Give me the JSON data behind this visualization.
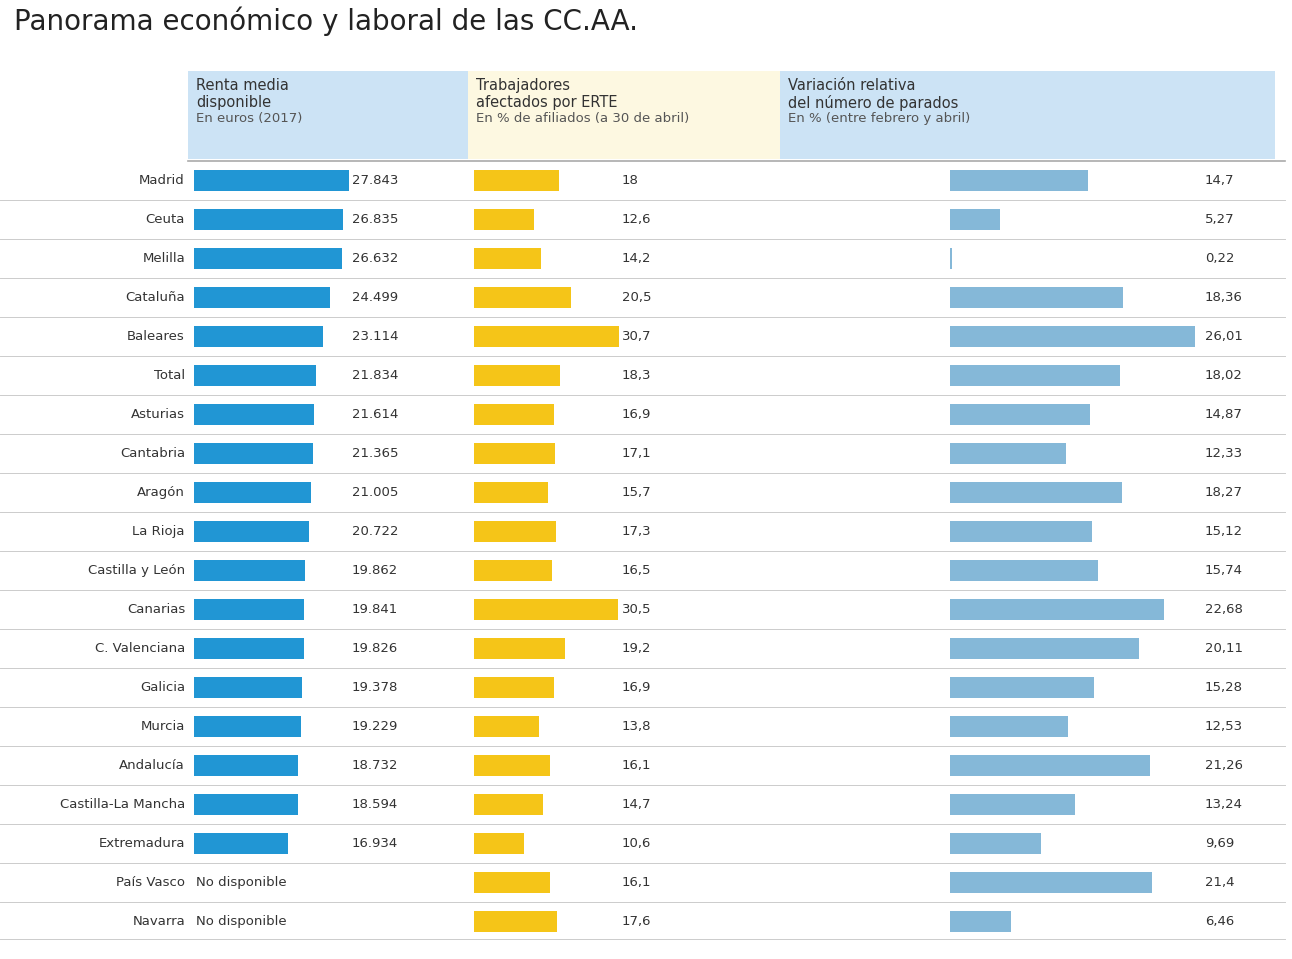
{
  "title": "Panorama económico y laboral de las CC.AA.",
  "regions": [
    "Madrid",
    "Ceuta",
    "Melilla",
    "Cataluña",
    "Baleares",
    "Total",
    "Asturias",
    "Cantabria",
    "Aragón",
    "La Rioja",
    "Castilla y León",
    "Canarias",
    "C. Valenciana",
    "Galicia",
    "Murcia",
    "Andalucía",
    "Castilla-La Mancha",
    "Extremadura",
    "País Vasco",
    "Navarra"
  ],
  "renta": [
    27843,
    26835,
    26632,
    24499,
    23114,
    21834,
    21614,
    21365,
    21005,
    20722,
    19862,
    19841,
    19826,
    19378,
    19229,
    18732,
    18594,
    16934,
    null,
    null
  ],
  "renta_labels": [
    "27.843",
    "26.835",
    "26.632",
    "24.499",
    "23.114",
    "21.834",
    "21.614",
    "21.365",
    "21.005",
    "20.722",
    "19.862",
    "19.841",
    "19.826",
    "19.378",
    "19.229",
    "18.732",
    "18.594",
    "16.934",
    "No disponible",
    "No disponible"
  ],
  "erte": [
    18.0,
    12.6,
    14.2,
    20.5,
    30.7,
    18.3,
    16.9,
    17.1,
    15.7,
    17.3,
    16.5,
    30.5,
    19.2,
    16.9,
    13.8,
    16.1,
    14.7,
    10.6,
    16.1,
    17.6
  ],
  "erte_labels": [
    "18",
    "12,6",
    "14,2",
    "20,5",
    "30,7",
    "18,3",
    "16,9",
    "17,1",
    "15,7",
    "17,3",
    "16,5",
    "30,5",
    "19,2",
    "16,9",
    "13,8",
    "16,1",
    "14,7",
    "10,6",
    "16,1",
    "17,6"
  ],
  "variacion": [
    14.7,
    5.27,
    0.22,
    18.36,
    26.01,
    18.02,
    14.87,
    12.33,
    18.27,
    15.12,
    15.74,
    22.68,
    20.11,
    15.28,
    12.53,
    21.26,
    13.24,
    9.69,
    21.4,
    6.46
  ],
  "variacion_labels": [
    "14,7",
    "5,27",
    "0,22",
    "18,36",
    "26,01",
    "18,02",
    "14,87",
    "12,33",
    "18,27",
    "15,12",
    "15,74",
    "22,68",
    "20,11",
    "15,28",
    "12,53",
    "21,26",
    "13,24",
    "9,69",
    "21,4",
    "6,46"
  ],
  "col1_header1": "Renta media",
  "col1_header2": "disponible",
  "col1_header3": "En euros (2017)",
  "col2_header1": "Trabajadores",
  "col2_header2": "afectados por ERTE",
  "col2_header3": "En % de afiliados (a 30 de abril)",
  "col3_header1": "Variación relativa",
  "col3_header2": "del número de parados",
  "col3_header3": "En % (entre febrero y abril)",
  "col1_bg": "#cce3f5",
  "col2_bg": "#fdf8e1",
  "col3_bg": "#cce3f5",
  "bar_blue_dark": "#2196d4",
  "bar_yellow": "#f5c518",
  "bar_blue_light": "#85b8d8",
  "renta_max": 27843,
  "erte_max": 30.7,
  "variacion_max": 26.01,
  "text_color": "#333333",
  "line_color": "#cccccc",
  "title_fontsize": 20,
  "label_fontsize": 9.5,
  "header_fontsize": 10.5,
  "header_sub_fontsize": 9.5
}
